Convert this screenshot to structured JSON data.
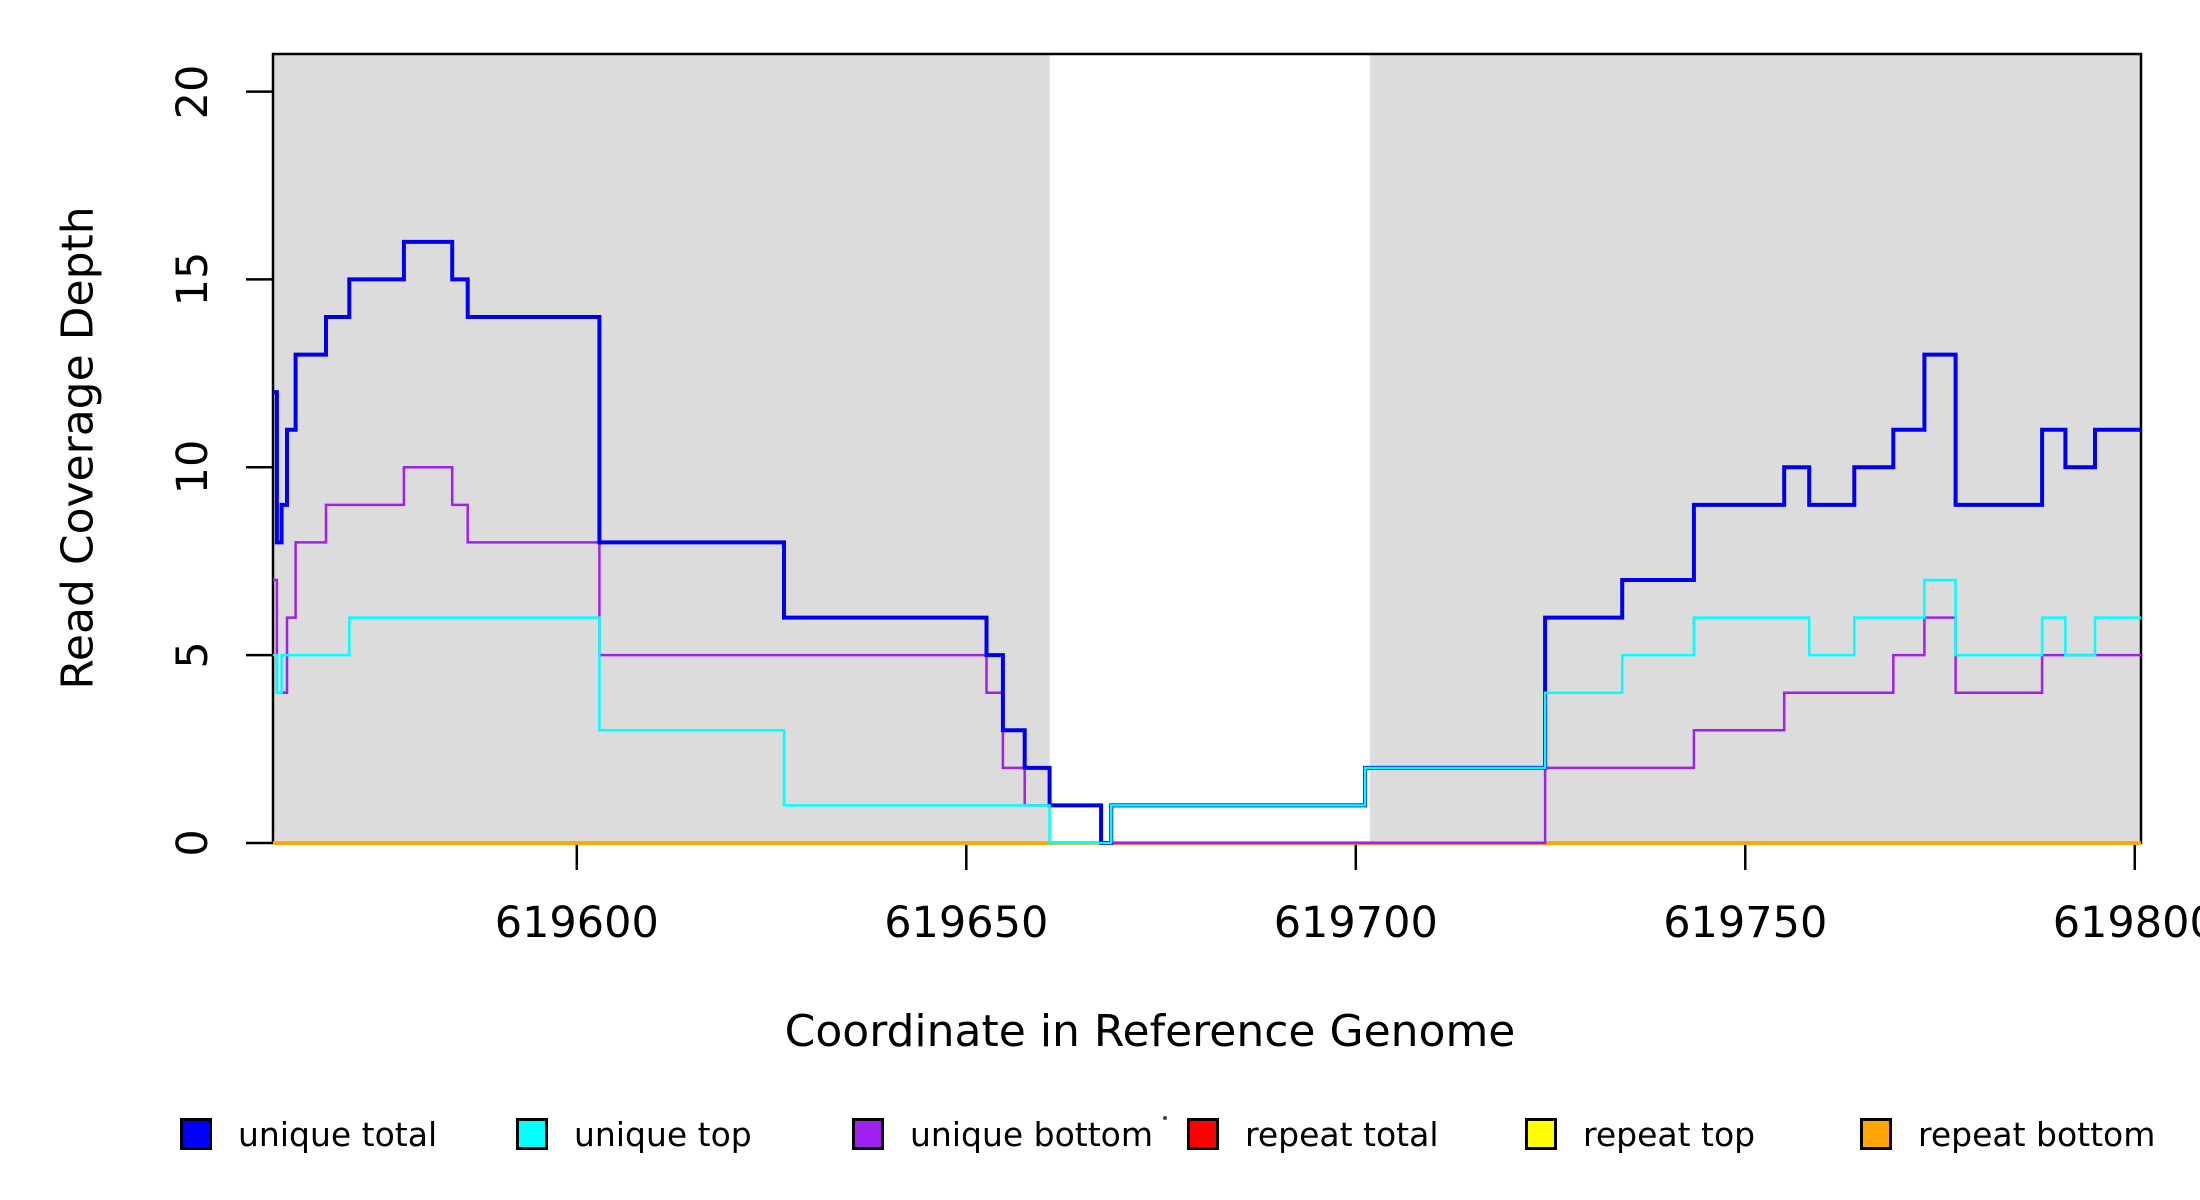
{
  "chart_data": {
    "type": "line",
    "subtype": "step-coverage-plot",
    "title": "",
    "xlabel": "Coordinate in Reference Genome",
    "ylabel": "Read Coverage Depth",
    "x_ticks": [
      619600,
      619650,
      619700,
      619750,
      619800
    ],
    "x_tick_labels": [
      "619600",
      "619650",
      "619700",
      "619750",
      "619800"
    ],
    "y_ticks": [
      0,
      5,
      10,
      15,
      20
    ],
    "y_tick_labels": [
      "0",
      "5",
      "10",
      "15",
      "20"
    ],
    "xlim": [
      619561.0,
      619800.8
    ],
    "ylim": [
      0,
      21.0
    ],
    "grid": false,
    "plot_bg": "#ffffff",
    "shaded_region_color": "#DCDCDC",
    "shaded_regions": [
      [
        619561.0,
        619660.7
      ],
      [
        619701.8,
        619800.8
      ]
    ],
    "legend_position": "bottom",
    "draw_order": [
      "repeat total",
      "repeat top",
      "repeat bottom",
      "unique bottom",
      "unique total",
      "unique top"
    ],
    "series": [
      {
        "name": "unique total",
        "color": "#0000EE",
        "line_width": 4,
        "points": [
          [
            619561.0,
            12
          ],
          [
            619561.5,
            8
          ],
          [
            619562.1,
            9
          ],
          [
            619562.8,
            11
          ],
          [
            619563.9,
            13
          ],
          [
            619567.8,
            14
          ],
          [
            619570.8,
            15
          ],
          [
            619577.8,
            16
          ],
          [
            619584.0,
            15
          ],
          [
            619586.0,
            14
          ],
          [
            619602.9,
            8
          ],
          [
            619626.6,
            6
          ],
          [
            619652.6,
            5
          ],
          [
            619654.7,
            3
          ],
          [
            619657.5,
            2
          ],
          [
            619660.7,
            1
          ],
          [
            619667.3,
            0
          ],
          [
            619668.6,
            1
          ],
          [
            619701.2,
            2
          ],
          [
            619724.3,
            6
          ],
          [
            619734.2,
            7
          ],
          [
            619743.4,
            9
          ],
          [
            619755.0,
            10
          ],
          [
            619758.2,
            9
          ],
          [
            619764.0,
            10
          ],
          [
            619769.0,
            11
          ],
          [
            619773.0,
            13
          ],
          [
            619777.0,
            9
          ],
          [
            619788.1,
            11
          ],
          [
            619791.1,
            10
          ],
          [
            619794.9,
            11
          ],
          [
            619800.8,
            11
          ]
        ]
      },
      {
        "name": "unique top",
        "color": "#00FFFF",
        "line_width": 2.5,
        "points": [
          [
            619561.0,
            5
          ],
          [
            619561.5,
            4
          ],
          [
            619562.1,
            5
          ],
          [
            619570.8,
            6
          ],
          [
            619602.9,
            3
          ],
          [
            619626.6,
            1
          ],
          [
            619660.7,
            0
          ],
          [
            619668.6,
            1
          ],
          [
            619701.2,
            2
          ],
          [
            619724.3,
            4
          ],
          [
            619734.2,
            5
          ],
          [
            619743.4,
            6
          ],
          [
            619758.2,
            5
          ],
          [
            619764.0,
            6
          ],
          [
            619773.0,
            7
          ],
          [
            619777.0,
            5
          ],
          [
            619788.1,
            6
          ],
          [
            619791.1,
            5
          ],
          [
            619794.9,
            6
          ],
          [
            619800.8,
            6
          ]
        ]
      },
      {
        "name": "unique bottom",
        "color": "#A020F0",
        "line_width": 2.5,
        "points": [
          [
            619561.0,
            7
          ],
          [
            619561.5,
            4
          ],
          [
            619562.8,
            6
          ],
          [
            619563.9,
            8
          ],
          [
            619567.8,
            9
          ],
          [
            619577.8,
            10
          ],
          [
            619584.0,
            9
          ],
          [
            619586.0,
            8
          ],
          [
            619602.9,
            5
          ],
          [
            619652.6,
            4
          ],
          [
            619654.7,
            2
          ],
          [
            619657.5,
            1
          ],
          [
            619667.3,
            0
          ],
          [
            619724.3,
            2
          ],
          [
            619743.4,
            3
          ],
          [
            619755.0,
            4
          ],
          [
            619769.0,
            5
          ],
          [
            619773.0,
            6
          ],
          [
            619777.0,
            4
          ],
          [
            619788.1,
            5
          ],
          [
            619800.8,
            5
          ]
        ]
      },
      {
        "name": "repeat total",
        "color": "#FF0000",
        "line_width": 3.5,
        "points": [
          [
            619561.0,
            0
          ],
          [
            619800.8,
            0
          ]
        ]
      },
      {
        "name": "repeat top",
        "color": "#FFFF00",
        "line_width": 3.5,
        "points": [
          [
            619561.0,
            0
          ],
          [
            619800.8,
            0
          ]
        ]
      },
      {
        "name": "repeat bottom",
        "color": "#FFA500",
        "line_width": 3.5,
        "points": [
          [
            619561.0,
            0
          ],
          [
            619800.8,
            0
          ]
        ]
      }
    ]
  },
  "legend": {
    "items": [
      {
        "label": "unique total",
        "color": "#0000FF"
      },
      {
        "label": "unique top",
        "color": "#00FFFF"
      },
      {
        "label": "unique bottom",
        "color": "#A020F0"
      },
      {
        "label": "repeat total",
        "color": "#FF0000"
      },
      {
        "label": "repeat top",
        "color": "#FFFF00"
      },
      {
        "label": "repeat bottom",
        "color": "#FFA500"
      }
    ]
  }
}
